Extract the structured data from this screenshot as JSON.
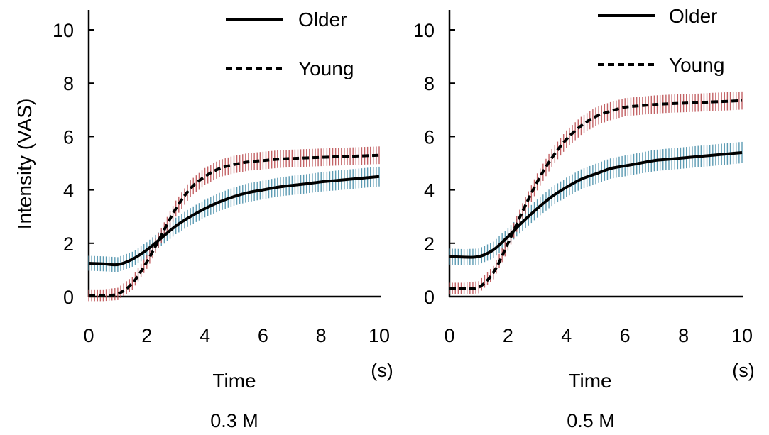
{
  "chart_data": [
    {
      "type": "line",
      "title": "",
      "condition_label": "0.3 M",
      "xlabel": "Time",
      "x_unit": "(s)",
      "ylabel": "Intensity (VAS)",
      "xlim": [
        0,
        10
      ],
      "ylim": [
        0,
        10
      ],
      "xticks": [
        0,
        2,
        4,
        6,
        8,
        10
      ],
      "yticks": [
        0,
        2,
        4,
        6,
        8,
        10
      ],
      "grid": false,
      "legend": "top-right",
      "legend_entries": [
        {
          "name": "Older",
          "style": "solid"
        },
        {
          "name": "Young",
          "style": "dashed"
        }
      ],
      "x": [
        0,
        0.5,
        1,
        1.5,
        2,
        2.5,
        3,
        3.5,
        4,
        4.5,
        5,
        5.5,
        6,
        6.5,
        7,
        7.5,
        8,
        8.5,
        9,
        9.5,
        10
      ],
      "series": [
        {
          "name": "Older",
          "style": "solid",
          "error_color": "#3f8aa6",
          "values": [
            1.25,
            1.23,
            1.2,
            1.4,
            1.75,
            2.2,
            2.65,
            3.0,
            3.3,
            3.55,
            3.75,
            3.9,
            4.0,
            4.1,
            4.17,
            4.23,
            4.3,
            4.35,
            4.4,
            4.45,
            4.5
          ],
          "error": [
            0.28,
            0.28,
            0.28,
            0.28,
            0.29,
            0.3,
            0.31,
            0.32,
            0.33,
            0.34,
            0.34,
            0.35,
            0.35,
            0.35,
            0.36,
            0.36,
            0.36,
            0.37,
            0.37,
            0.37,
            0.37
          ]
        },
        {
          "name": "Young",
          "style": "dashed",
          "error_color": "#b8474a",
          "values": [
            0.05,
            0.05,
            0.1,
            0.5,
            1.3,
            2.3,
            3.3,
            4.05,
            4.5,
            4.8,
            4.95,
            5.05,
            5.1,
            5.15,
            5.18,
            5.2,
            5.22,
            5.24,
            5.26,
            5.28,
            5.3
          ],
          "error": [
            0.22,
            0.22,
            0.23,
            0.24,
            0.26,
            0.28,
            0.3,
            0.31,
            0.32,
            0.32,
            0.33,
            0.33,
            0.33,
            0.33,
            0.33,
            0.33,
            0.33,
            0.33,
            0.33,
            0.33,
            0.33
          ]
        }
      ]
    },
    {
      "type": "line",
      "title": "",
      "condition_label": "0.5 M",
      "xlabel": "Time",
      "x_unit": "(s)",
      "ylabel": "",
      "xlim": [
        0,
        10
      ],
      "ylim": [
        0,
        10
      ],
      "xticks": [
        0,
        2,
        4,
        6,
        8,
        10
      ],
      "yticks": [
        0,
        2,
        4,
        6,
        8,
        10
      ],
      "grid": false,
      "legend": "top-right",
      "legend_entries": [
        {
          "name": "Older",
          "style": "solid"
        },
        {
          "name": "Young",
          "style": "dashed"
        }
      ],
      "x": [
        0,
        0.5,
        1,
        1.5,
        2,
        2.5,
        3,
        3.5,
        4,
        4.5,
        5,
        5.5,
        6,
        6.5,
        7,
        7.5,
        8,
        8.5,
        9,
        9.5,
        10
      ],
      "series": [
        {
          "name": "Older",
          "style": "solid",
          "error_color": "#3f8aa6",
          "values": [
            1.5,
            1.48,
            1.5,
            1.75,
            2.25,
            2.8,
            3.3,
            3.75,
            4.1,
            4.4,
            4.6,
            4.8,
            4.9,
            5.0,
            5.1,
            5.15,
            5.2,
            5.25,
            5.3,
            5.35,
            5.4
          ],
          "error": [
            0.3,
            0.3,
            0.3,
            0.31,
            0.32,
            0.33,
            0.34,
            0.35,
            0.36,
            0.37,
            0.38,
            0.38,
            0.39,
            0.39,
            0.4,
            0.4,
            0.4,
            0.4,
            0.4,
            0.4,
            0.4
          ]
        },
        {
          "name": "Young",
          "style": "dashed",
          "error_color": "#b8474a",
          "values": [
            0.3,
            0.3,
            0.35,
            0.9,
            2.0,
            3.2,
            4.3,
            5.2,
            5.9,
            6.4,
            6.75,
            6.95,
            7.1,
            7.15,
            7.2,
            7.23,
            7.25,
            7.27,
            7.3,
            7.32,
            7.35
          ],
          "error": [
            0.22,
            0.22,
            0.23,
            0.25,
            0.28,
            0.3,
            0.32,
            0.33,
            0.33,
            0.34,
            0.34,
            0.34,
            0.34,
            0.34,
            0.34,
            0.34,
            0.34,
            0.34,
            0.34,
            0.34,
            0.34
          ]
        }
      ]
    }
  ]
}
